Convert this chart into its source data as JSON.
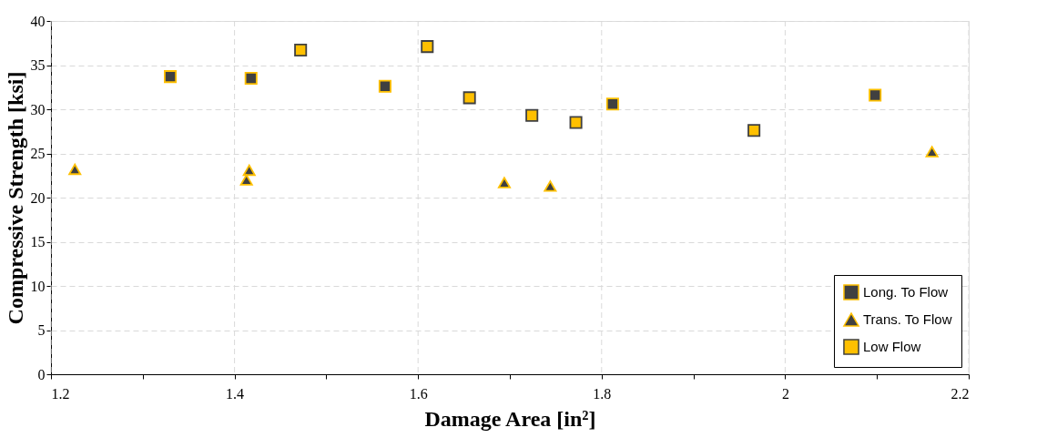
{
  "chart_data": {
    "type": "scatter",
    "xlabel": "Damage Area [in²]",
    "ylabel": "Compressive Strength [ksi]",
    "series": [
      {
        "name": "Long. To Flow",
        "color": "#404040",
        "marker": "square",
        "x": [
          1.33,
          1.418,
          1.564,
          1.812,
          2.098
        ],
        "values": [
          33.7,
          33.5,
          32.6,
          30.6,
          31.6
        ]
      },
      {
        "name": "Trans. To Flow",
        "color": "#404040",
        "marker": "triangle",
        "x": [
          1.226,
          1.416,
          1.413,
          1.694,
          1.744,
          2.16
        ],
        "values": [
          23.2,
          23.1,
          22.0,
          21.7,
          21.3,
          25.2
        ]
      },
      {
        "name": "Low Flow",
        "color": "#ffc000",
        "marker": "square",
        "x": [
          1.472,
          1.61,
          1.656,
          1.724,
          1.772,
          1.966
        ],
        "values": [
          36.7,
          37.1,
          31.3,
          29.3,
          28.5,
          27.6
        ]
      }
    ],
    "xlim": [
      1.2,
      2.2
    ],
    "xticks": [
      1.2,
      {
        "value": 1.3,
        "label": null
      },
      1.4,
      {
        "value": 1.5,
        "label": null
      },
      1.6,
      {
        "value": 1.7,
        "label": null
      },
      1.8,
      {
        "value": 1.9,
        "label": null
      },
      2,
      {
        "value": 2.1,
        "label": null
      },
      2.2
    ],
    "ylim": [
      0,
      40
    ],
    "yticks": [
      0,
      5,
      10,
      15,
      20,
      25,
      30,
      35,
      40
    ],
    "grid": true,
    "legend": "bottom right"
  }
}
